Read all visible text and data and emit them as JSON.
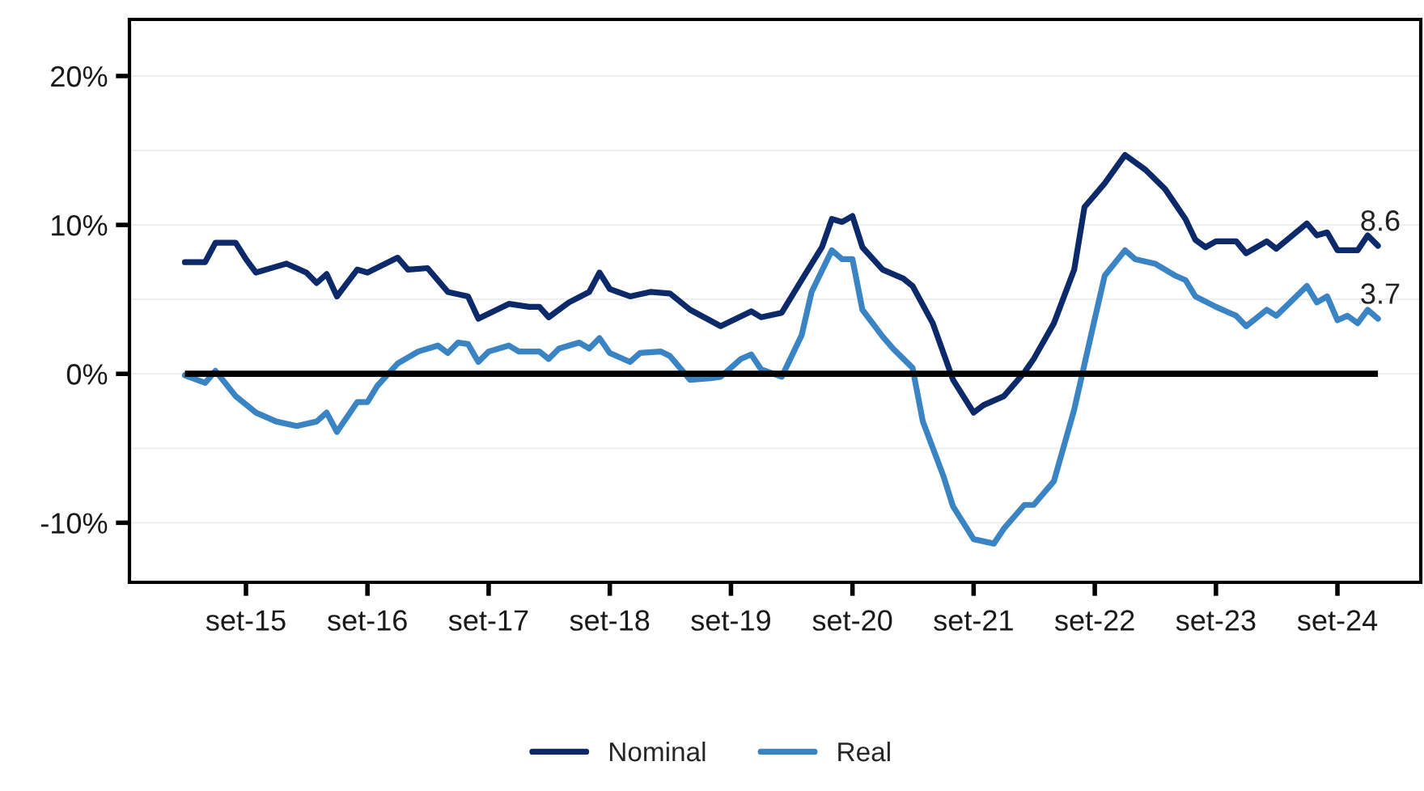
{
  "chart_data": {
    "type": "line",
    "xlim": [
      "2014-09-15",
      "2025-05-10"
    ],
    "xticks": [
      {
        "value": "2015-09",
        "label": "set-15"
      },
      {
        "value": "2016-09",
        "label": "set-16"
      },
      {
        "value": "2017-09",
        "label": "set-17"
      },
      {
        "value": "2018-09",
        "label": "set-18"
      },
      {
        "value": "2019-09",
        "label": "set-19"
      },
      {
        "value": "2020-09",
        "label": "set-20"
      },
      {
        "value": "2021-09",
        "label": "set-21"
      },
      {
        "value": "2022-09",
        "label": "set-22"
      },
      {
        "value": "2023-09",
        "label": "set-23"
      },
      {
        "value": "2024-09",
        "label": "set-24"
      }
    ],
    "ylim": [
      -14,
      23.8
    ],
    "yticks": [
      {
        "value": -10,
        "label": "-10%"
      },
      {
        "value": 0,
        "label": "0%"
      },
      {
        "value": 10,
        "label": "10%"
      },
      {
        "value": 20,
        "label": "20%"
      }
    ],
    "grid": "y",
    "legend": "bottom",
    "marker": "none",
    "line_style": "solid",
    "ref_lines": [
      {
        "axis": "y",
        "value": 0,
        "color": "#000000"
      }
    ],
    "annotations": [
      {
        "text": "8.6",
        "x": "2025-01",
        "y": 8.6
      },
      {
        "text": "3.7",
        "x": "2025-01",
        "y": 3.7
      }
    ],
    "series": [
      {
        "name": "Nominal",
        "color": "#0c2a6a",
        "x": [
          "2015-03",
          "2015-05",
          "2015-06",
          "2015-08",
          "2015-09",
          "2015-10",
          "2015-12",
          "2016-01",
          "2016-03",
          "2016-04",
          "2016-05",
          "2016-06",
          "2016-08",
          "2016-09",
          "2016-12",
          "2017-01",
          "2017-03",
          "2017-05",
          "2017-07",
          "2017-08",
          "2017-11",
          "2018-01",
          "2018-02",
          "2018-03",
          "2018-05",
          "2018-07",
          "2018-08",
          "2018-09",
          "2018-11",
          "2019-01",
          "2019-03",
          "2019-05",
          "2019-08",
          "2019-11",
          "2019-12",
          "2020-02",
          "2020-04",
          "2020-06",
          "2020-07",
          "2020-08",
          "2020-09",
          "2020-10",
          "2020-12",
          "2021-02",
          "2021-03",
          "2021-05",
          "2021-07",
          "2021-09",
          "2021-10",
          "2021-12",
          "2022-02",
          "2022-03",
          "2022-05",
          "2022-07",
          "2022-08",
          "2022-10",
          "2022-12",
          "2023-02",
          "2023-04",
          "2023-06",
          "2023-07",
          "2023-08",
          "2023-09",
          "2023-11",
          "2023-12",
          "2024-02",
          "2024-03",
          "2024-06",
          "2024-07",
          "2024-08",
          "2024-09",
          "2024-11",
          "2024-12",
          "2025-01"
        ],
        "values": [
          7.5,
          7.5,
          8.8,
          8.8,
          7.7,
          6.8,
          7.2,
          7.4,
          6.8,
          6.1,
          6.7,
          5.2,
          7.0,
          6.8,
          7.8,
          7.0,
          7.1,
          5.5,
          5.2,
          3.7,
          4.7,
          4.5,
          4.5,
          3.8,
          4.8,
          5.5,
          6.8,
          5.7,
          5.2,
          5.5,
          5.4,
          4.3,
          3.2,
          4.2,
          3.8,
          4.1,
          6.3,
          8.5,
          10.4,
          10.2,
          10.6,
          8.5,
          7.0,
          6.4,
          5.9,
          3.4,
          -0.4,
          -2.6,
          -2.1,
          -1.5,
          0.1,
          1.0,
          3.4,
          7.0,
          11.2,
          12.8,
          14.7,
          13.7,
          12.4,
          10.4,
          9.0,
          8.5,
          8.9,
          8.9,
          8.1,
          8.9,
          8.4,
          10.1,
          9.3,
          9.5,
          8.3,
          8.3,
          9.3,
          8.6
        ]
      },
      {
        "name": "Real",
        "color": "#3a84c4",
        "x": [
          "2015-03",
          "2015-05",
          "2015-06",
          "2015-08",
          "2015-10",
          "2015-12",
          "2016-02",
          "2016-04",
          "2016-05",
          "2016-06",
          "2016-08",
          "2016-09",
          "2016-10",
          "2016-12",
          "2017-02",
          "2017-04",
          "2017-05",
          "2017-06",
          "2017-07",
          "2017-08",
          "2017-09",
          "2017-11",
          "2017-12",
          "2018-02",
          "2018-03",
          "2018-04",
          "2018-06",
          "2018-07",
          "2018-08",
          "2018-09",
          "2018-11",
          "2018-12",
          "2019-02",
          "2019-03",
          "2019-05",
          "2019-07",
          "2019-08",
          "2019-10",
          "2019-11",
          "2019-12",
          "2020-02",
          "2020-04",
          "2020-05",
          "2020-07",
          "2020-08",
          "2020-09",
          "2020-10",
          "2020-12",
          "2021-01",
          "2021-03",
          "2021-04",
          "2021-06",
          "2021-07",
          "2021-09",
          "2021-11",
          "2021-12",
          "2022-02",
          "2022-03",
          "2022-05",
          "2022-07",
          "2022-09",
          "2022-10",
          "2022-12",
          "2023-01",
          "2023-03",
          "2023-05",
          "2023-06",
          "2023-07",
          "2023-09",
          "2023-11",
          "2023-12",
          "2024-02",
          "2024-03",
          "2024-06",
          "2024-07",
          "2024-08",
          "2024-09",
          "2024-10",
          "2024-11",
          "2024-12",
          "2025-01"
        ],
        "values": [
          -0.1,
          -0.6,
          0.2,
          -1.5,
          -2.6,
          -3.2,
          -3.5,
          -3.2,
          -2.6,
          -3.9,
          -1.9,
          -1.9,
          -0.8,
          0.7,
          1.5,
          1.9,
          1.4,
          2.1,
          2.0,
          0.8,
          1.5,
          1.9,
          1.5,
          1.5,
          1.0,
          1.7,
          2.1,
          1.7,
          2.4,
          1.4,
          0.8,
          1.4,
          1.5,
          1.2,
          -0.4,
          -0.3,
          -0.2,
          1.0,
          1.3,
          0.3,
          -0.2,
          2.6,
          5.5,
          8.3,
          7.7,
          7.7,
          4.3,
          2.5,
          1.7,
          0.4,
          -3.2,
          -6.8,
          -8.9,
          -11.1,
          -11.4,
          -10.4,
          -8.8,
          -8.8,
          -7.2,
          -2.4,
          3.7,
          6.6,
          8.3,
          7.7,
          7.4,
          6.6,
          6.3,
          5.2,
          4.5,
          3.9,
          3.2,
          4.3,
          3.9,
          5.9,
          4.8,
          5.2,
          3.6,
          3.9,
          3.4,
          4.3,
          3.7
        ]
      }
    ]
  }
}
